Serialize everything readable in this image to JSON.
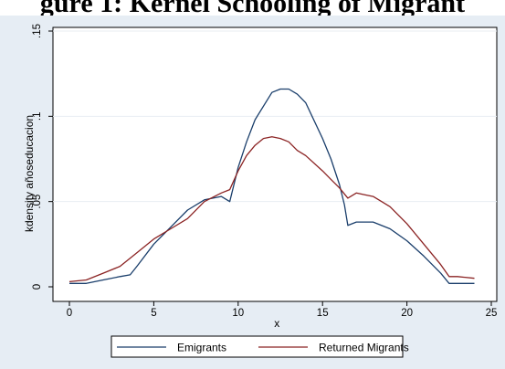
{
  "page_title": "gure 1: Kernel Schooling of Migrant",
  "chart_data": {
    "type": "line",
    "title": "gure 1: Kernel Schooling of Migrant",
    "xlabel": "x",
    "ylabel": "kdensity añoseducacion",
    "xlim": [
      0,
      25
    ],
    "ylim": [
      0,
      0.15
    ],
    "x_ticks": [
      0,
      5,
      10,
      15,
      20,
      25
    ],
    "y_ticks": [
      0,
      0.05,
      0.1,
      0.15
    ],
    "x_tick_labels": [
      "0",
      "5",
      "10",
      "15",
      "20",
      "25"
    ],
    "y_tick_labels": [
      "0",
      ".05",
      ".1",
      ".15"
    ],
    "grid": "horizontal",
    "legend_position": "bottom",
    "series": [
      {
        "name": "Emigrants",
        "color": "#1a3e6b",
        "x": [
          0,
          1,
          2,
          3,
          3.6,
          4,
          5,
          6,
          7,
          8,
          9,
          9.5,
          10,
          10.5,
          11,
          12,
          12.5,
          13,
          13.5,
          14,
          15,
          15.5,
          16,
          16.3,
          16.5,
          17,
          18,
          19,
          20,
          21,
          22,
          22.5,
          23,
          24
        ],
        "values": [
          0.002,
          0.002,
          0.004,
          0.006,
          0.007,
          0.012,
          0.025,
          0.035,
          0.045,
          0.051,
          0.053,
          0.05,
          0.07,
          0.085,
          0.098,
          0.114,
          0.116,
          0.116,
          0.113,
          0.108,
          0.087,
          0.075,
          0.06,
          0.048,
          0.036,
          0.038,
          0.038,
          0.034,
          0.027,
          0.018,
          0.008,
          0.002,
          0.002,
          0.002
        ]
      },
      {
        "name": "Returned Migrants",
        "color": "#8b2323",
        "x": [
          0,
          1,
          2,
          3,
          4,
          5,
          6,
          7,
          8,
          9,
          9.5,
          10,
          10.5,
          11,
          11.5,
          12,
          12.5,
          13,
          13.5,
          14,
          15,
          15.5,
          16,
          16.5,
          17,
          17.5,
          18,
          18.5,
          19,
          20,
          21,
          22,
          22.5,
          23,
          24
        ],
        "values": [
          0.003,
          0.004,
          0.008,
          0.012,
          0.02,
          0.028,
          0.034,
          0.04,
          0.05,
          0.055,
          0.057,
          0.068,
          0.077,
          0.083,
          0.087,
          0.088,
          0.087,
          0.085,
          0.08,
          0.077,
          0.068,
          0.063,
          0.058,
          0.052,
          0.055,
          0.054,
          0.053,
          0.05,
          0.047,
          0.037,
          0.025,
          0.013,
          0.006,
          0.006,
          0.005
        ]
      }
    ]
  }
}
